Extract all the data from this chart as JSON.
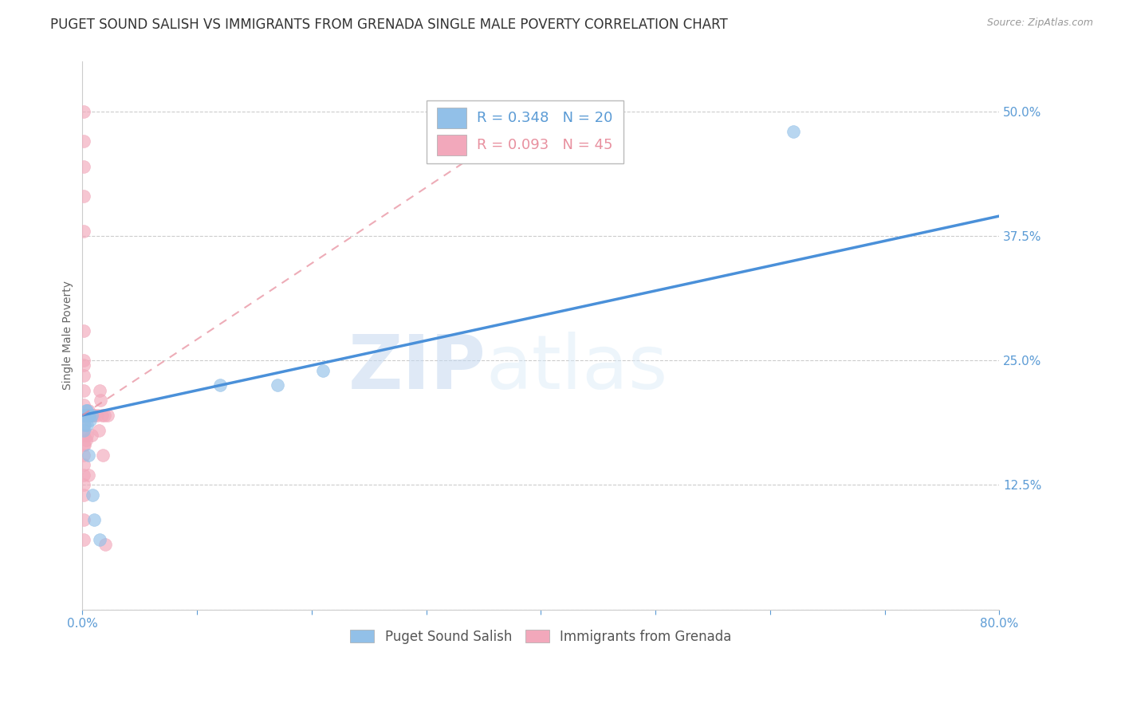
{
  "title": "PUGET SOUND SALISH VS IMMIGRANTS FROM GRENADA SINGLE MALE POVERTY CORRELATION CHART",
  "source": "Source: ZipAtlas.com",
  "ylabel": "Single Male Poverty",
  "xlim": [
    0.0,
    0.8
  ],
  "ylim": [
    0.0,
    0.55
  ],
  "xticks": [
    0.0,
    0.1,
    0.2,
    0.3,
    0.4,
    0.5,
    0.6,
    0.7,
    0.8
  ],
  "yticks": [
    0.0,
    0.125,
    0.25,
    0.375,
    0.5
  ],
  "grid_color": "#cccccc",
  "background_color": "#ffffff",
  "blue_color": "#92c0e8",
  "pink_color": "#f2a8bb",
  "blue_line_color": "#4a90d9",
  "pink_line_color": "#e8909f",
  "blue_R": 0.348,
  "blue_N": 20,
  "pink_R": 0.093,
  "pink_N": 45,
  "legend_label_blue": "Puget Sound Salish",
  "legend_label_pink": "Immigrants from Grenada",
  "watermark_zip": "ZIP",
  "watermark_atlas": "atlas",
  "tick_label_color": "#5b9bd5",
  "title_color": "#333333",
  "title_fontsize": 12,
  "axis_fontsize": 10,
  "blue_scatter_x": [
    0.001,
    0.001,
    0.002,
    0.002,
    0.003,
    0.003,
    0.004,
    0.004,
    0.005,
    0.005,
    0.006,
    0.007,
    0.008,
    0.009,
    0.01,
    0.12,
    0.17,
    0.62,
    0.21,
    0.015
  ],
  "blue_scatter_y": [
    0.195,
    0.18,
    0.195,
    0.185,
    0.2,
    0.195,
    0.2,
    0.185,
    0.195,
    0.155,
    0.195,
    0.19,
    0.195,
    0.115,
    0.09,
    0.225,
    0.225,
    0.48,
    0.24,
    0.07
  ],
  "pink_scatter_x": [
    0.001,
    0.001,
    0.001,
    0.001,
    0.001,
    0.001,
    0.001,
    0.001,
    0.001,
    0.001,
    0.001,
    0.001,
    0.001,
    0.001,
    0.001,
    0.001,
    0.001,
    0.001,
    0.001,
    0.001,
    0.001,
    0.001,
    0.002,
    0.002,
    0.003,
    0.003,
    0.004,
    0.004,
    0.005,
    0.005,
    0.005,
    0.006,
    0.007,
    0.008,
    0.009,
    0.01,
    0.013,
    0.014,
    0.015,
    0.016,
    0.017,
    0.018,
    0.019,
    0.02,
    0.022
  ],
  "pink_scatter_y": [
    0.5,
    0.47,
    0.445,
    0.415,
    0.38,
    0.28,
    0.25,
    0.245,
    0.235,
    0.22,
    0.205,
    0.195,
    0.185,
    0.175,
    0.165,
    0.155,
    0.145,
    0.135,
    0.125,
    0.115,
    0.09,
    0.07,
    0.195,
    0.165,
    0.195,
    0.17,
    0.195,
    0.175,
    0.2,
    0.195,
    0.135,
    0.195,
    0.195,
    0.175,
    0.195,
    0.195,
    0.195,
    0.18,
    0.22,
    0.21,
    0.195,
    0.155,
    0.195,
    0.065,
    0.195
  ],
  "blue_trend_x0": 0.0,
  "blue_trend_y0": 0.195,
  "blue_trend_x1": 0.8,
  "blue_trend_y1": 0.395,
  "pink_trend_x0": 0.0,
  "pink_trend_y0": 0.195,
  "pink_trend_x1": 0.4,
  "pink_trend_y1": 0.5
}
